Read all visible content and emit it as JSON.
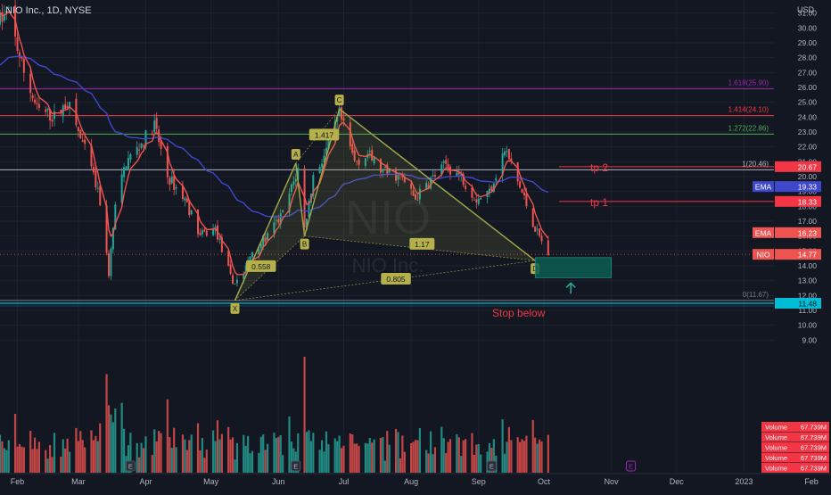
{
  "header": {
    "symbol_text": "NIO Inc., 1D, NYSE",
    "currency": "USD",
    "watermark_symbol": "NIO",
    "watermark_name": "NIO Inc."
  },
  "colors": {
    "background": "#131722",
    "grid": "#1e222d",
    "text": "#b2b5be",
    "up_candle": "#26a69a",
    "down_candle": "#ef5350",
    "ema_fast": "#ef5350",
    "ema_slow": "#3f48cc",
    "pattern_line": "#a2a94a",
    "pattern_fill": "#a2a94a",
    "zone_fill": "#0d5c52",
    "zone_border": "#26a69a",
    "arrow": "#26a69a",
    "fib_1618": "#9c27b0",
    "fib_1414": "#f23645",
    "fib_1272": "#4caf50",
    "fib_1": "#b2b5be",
    "fib_0": "#787b86",
    "tp_line": "#f23645",
    "stop_line": "#00bcd4",
    "volume_badge": "#f23645"
  },
  "chart_data": {
    "type": "candlestick",
    "y_axis": {
      "ticks": [
        "31.00",
        "30.00",
        "29.00",
        "28.00",
        "27.00",
        "26.00",
        "25.00",
        "24.00",
        "23.00",
        "22.00",
        "21.00",
        "20.00",
        "19.00",
        "18.00",
        "17.00",
        "16.00",
        "15.00",
        "14.00",
        "13.00",
        "12.00",
        "11.00",
        "10.00",
        "9.00"
      ],
      "range": [
        8.6,
        31.4
      ]
    },
    "x_axis": {
      "labels": [
        "Feb",
        "Mar",
        "Apr",
        "May",
        "Jun",
        "Jul",
        "Aug",
        "Sep",
        "Oct",
        "Nov",
        "Dec",
        "2023",
        "Feb"
      ],
      "range": [
        "2022-01-24",
        "2023-02-10"
      ]
    },
    "price_anchors": [
      [
        "2022-01-24",
        30.5
      ],
      [
        "2022-01-28",
        31.0
      ],
      [
        "2022-02-03",
        27.5
      ],
      [
        "2022-02-10",
        24.5
      ],
      [
        "2022-02-18",
        24.0
      ],
      [
        "2022-02-24",
        25.0
      ],
      [
        "2022-03-01",
        23.0
      ],
      [
        "2022-03-07",
        20.5
      ],
      [
        "2022-03-11",
        18.3
      ],
      [
        "2022-03-15",
        13.5
      ],
      [
        "2022-03-18",
        18.0
      ],
      [
        "2022-03-23",
        21.0
      ],
      [
        "2022-03-29",
        22.0
      ],
      [
        "2022-04-05",
        23.5
      ],
      [
        "2022-04-11",
        20.0
      ],
      [
        "2022-04-19",
        18.5
      ],
      [
        "2022-04-26",
        16.0
      ],
      [
        "2022-05-03",
        16.5
      ],
      [
        "2022-05-11",
        12.8
      ],
      [
        "2022-05-16",
        13.5
      ],
      [
        "2022-05-20",
        15.0
      ],
      [
        "2022-05-27",
        16.0
      ],
      [
        "2022-06-03",
        17.5
      ],
      [
        "2022-06-10",
        20.5
      ],
      [
        "2022-06-13",
        16.5
      ],
      [
        "2022-06-17",
        20.0
      ],
      [
        "2022-06-24",
        22.0
      ],
      [
        "2022-06-29",
        24.2
      ],
      [
        "2022-07-06",
        21.0
      ],
      [
        "2022-07-12",
        21.5
      ],
      [
        "2022-07-19",
        20.3
      ],
      [
        "2022-07-27",
        20.0
      ],
      [
        "2022-08-03",
        18.5
      ],
      [
        "2022-08-10",
        19.8
      ],
      [
        "2022-08-17",
        20.8
      ],
      [
        "2022-08-24",
        20.0
      ],
      [
        "2022-08-31",
        18.5
      ],
      [
        "2022-09-06",
        19.0
      ],
      [
        "2022-09-13",
        21.8
      ],
      [
        "2022-09-16",
        20.8
      ],
      [
        "2022-09-22",
        18.5
      ],
      [
        "2022-09-27",
        16.5
      ],
      [
        "2022-10-03",
        14.8
      ]
    ],
    "indicators": [
      {
        "name": "EMA",
        "last_value": "19.33",
        "color": "#3f48cc",
        "length": 50
      },
      {
        "name": "EMA",
        "last_value": "16.23",
        "color": "#ef5350",
        "length": 5
      }
    ],
    "last_price": {
      "symbol": "NIO",
      "value": "14.77"
    },
    "harmonic_pattern": {
      "points": [
        {
          "label": "X",
          "date": "2022-05-12",
          "price": 11.67
        },
        {
          "label": "A",
          "date": "2022-06-09",
          "price": 20.9
        },
        {
          "label": "B",
          "date": "2022-06-13",
          "price": 16.0
        },
        {
          "label": "C",
          "date": "2022-06-29",
          "price": 24.55
        },
        {
          "label": "D",
          "date": "2022-09-27",
          "price": 14.35
        }
      ],
      "ratios": [
        {
          "text": "0.558",
          "date": "2022-05-24",
          "price": 13.95
        },
        {
          "text": "1.417",
          "date": "2022-06-22",
          "price": 22.8
        },
        {
          "text": "1.17",
          "date": "2022-08-06",
          "price": 15.45
        },
        {
          "text": "0.805",
          "date": "2022-07-25",
          "price": 13.1
        }
      ]
    },
    "horizontal_levels": [
      {
        "label": "1.618(25.90)",
        "price": 25.9,
        "color": "#9c27b0"
      },
      {
        "label": "1.414(24.10)",
        "price": 24.1,
        "color": "#f23645"
      },
      {
        "label": "1.272(22.86)",
        "price": 22.86,
        "color": "#4caf50"
      },
      {
        "label": "1(20.46)",
        "price": 20.46,
        "color": "#b2b5be"
      },
      {
        "label": "0(11.67)",
        "price": 11.67,
        "color": "#787b86"
      }
    ],
    "target_levels": [
      {
        "label": "tp 2",
        "price": 20.67,
        "badge": "20.67"
      },
      {
        "label": "tp 1",
        "price": 18.33,
        "badge": "18.33"
      }
    ],
    "stop_level": {
      "label": "Stop below",
      "price": 11.48,
      "badge": "11.48"
    },
    "entry_zone": {
      "from_date": "2022-09-27",
      "to_date": "2022-11-01",
      "top": 14.55,
      "bottom": 13.2
    },
    "volume_badges": [
      "67.739M",
      "67.739M",
      "67.739M",
      "67.739M",
      "67.739M"
    ],
    "volume_badge_prefix": "Volume",
    "event_markers": [
      {
        "letter": "E",
        "date": "2022-03-25"
      },
      {
        "letter": "E",
        "date": "2022-06-09"
      },
      {
        "letter": "E",
        "date": "2022-09-07"
      },
      {
        "letter": "E",
        "date": "2022-11-10"
      }
    ]
  }
}
